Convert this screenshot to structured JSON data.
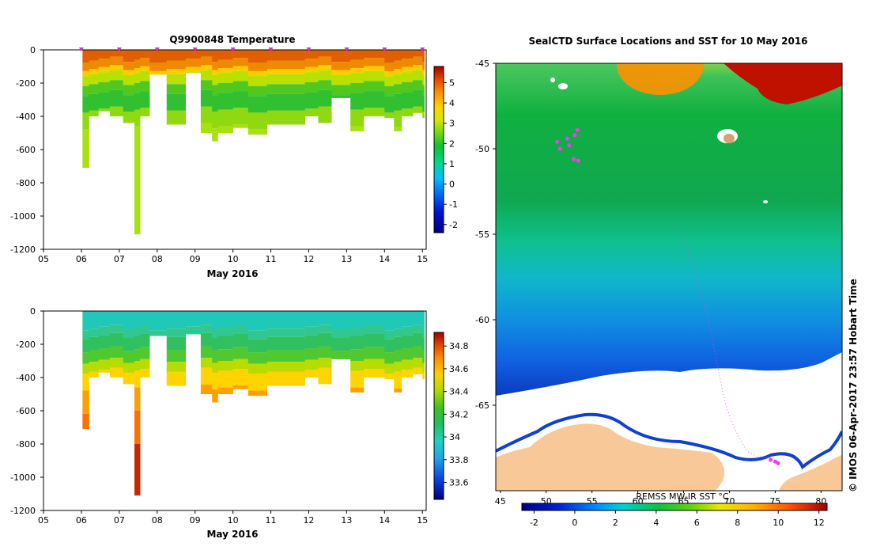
{
  "chart_data": [
    {
      "type": "heatmap",
      "title": "Q9900848  Temperature",
      "xlabel": "May 2016",
      "ylabel": "",
      "x_tick_labels": [
        "05",
        "06",
        "07",
        "08",
        "09",
        "10",
        "11",
        "12",
        "13",
        "14",
        "15"
      ],
      "x_range": [
        5.0,
        15.1
      ],
      "y_ticks": [
        0,
        -200,
        -400,
        -600,
        -800,
        -1000,
        -1200
      ],
      "ylim": [
        -1200,
        0
      ],
      "colorbar": {
        "ticks": [
          5,
          4,
          3,
          2,
          1,
          0,
          -1,
          -2
        ],
        "range": [
          -2.4,
          5.8
        ]
      },
      "profile_times": [
        6.0,
        7.0,
        8.0,
        9.0,
        10.0,
        11.0,
        12.0,
        13.0,
        14.0,
        15.0
      ],
      "profiles": [
        {
          "t0": 6.03,
          "t1": 6.2,
          "bottom": -710
        },
        {
          "t0": 6.2,
          "t1": 6.45,
          "bottom": -400
        },
        {
          "t0": 6.45,
          "t1": 6.75,
          "bottom": -370
        },
        {
          "t0": 6.75,
          "t1": 7.1,
          "bottom": -400
        },
        {
          "t0": 7.1,
          "t1": 7.4,
          "bottom": -440
        },
        {
          "t0": 7.4,
          "t1": 7.55,
          "bottom": -1110
        },
        {
          "t0": 7.55,
          "t1": 7.8,
          "bottom": -400
        },
        {
          "t0": 7.8,
          "t1": 8.25,
          "bottom": -150
        },
        {
          "t0": 8.25,
          "t1": 8.75,
          "bottom": -450
        },
        {
          "t0": 8.75,
          "t1": 9.15,
          "bottom": -140
        },
        {
          "t0": 9.15,
          "t1": 9.45,
          "bottom": -500
        },
        {
          "t0": 9.45,
          "t1": 9.6,
          "bottom": -550
        },
        {
          "t0": 9.6,
          "t1": 10.0,
          "bottom": -500
        },
        {
          "t0": 10.0,
          "t1": 10.4,
          "bottom": -470
        },
        {
          "t0": 10.4,
          "t1": 10.9,
          "bottom": -510
        },
        {
          "t0": 10.9,
          "t1": 11.9,
          "bottom": -450
        },
        {
          "t0": 11.9,
          "t1": 12.25,
          "bottom": -400
        },
        {
          "t0": 12.25,
          "t1": 12.6,
          "bottom": -440
        },
        {
          "t0": 12.6,
          "t1": 13.1,
          "bottom": -290
        },
        {
          "t0": 13.1,
          "t1": 13.45,
          "bottom": -490
        },
        {
          "t0": 13.45,
          "t1": 14.0,
          "bottom": -400
        },
        {
          "t0": 14.0,
          "t1": 14.25,
          "bottom": -410
        },
        {
          "t0": 14.25,
          "t1": 14.45,
          "bottom": -490
        },
        {
          "t0": 14.45,
          "t1": 14.75,
          "bottom": -400
        },
        {
          "t0": 14.75,
          "t1": 15.0,
          "bottom": -380
        },
        {
          "t0": 15.0,
          "t1": 15.05,
          "bottom": -410
        }
      ]
    },
    {
      "type": "heatmap",
      "title": "",
      "xlabel": "May 2016",
      "ylabel": "",
      "x_tick_labels": [
        "05",
        "06",
        "07",
        "08",
        "09",
        "10",
        "11",
        "12",
        "13",
        "14",
        "15"
      ],
      "x_range": [
        5.0,
        15.1
      ],
      "y_ticks": [
        0,
        -200,
        -400,
        -600,
        -800,
        -1000,
        -1200
      ],
      "ylim": [
        -1200,
        0
      ],
      "colorbar": {
        "ticks": [
          34.8,
          34.6,
          34.4,
          34.2,
          34,
          33.8,
          33.6
        ],
        "tick_labels": [
          "34.8",
          "34.6",
          "34.4",
          "34.2",
          "34",
          "33.8",
          "33.6"
        ],
        "range": [
          33.45,
          34.92
        ]
      }
    },
    {
      "type": "map",
      "title": "SealCTD Surface Locations and SST for 10 May 2016",
      "x_ticks": [
        45,
        50,
        55,
        60,
        65,
        70,
        75,
        80
      ],
      "x_range": [
        44.5,
        82.3
      ],
      "y_ticks": [
        -45,
        -50,
        -55,
        -60,
        -65
      ],
      "y_range": [
        -70.0,
        -45.0
      ],
      "colorbar": {
        "label": "REMSS MW-IR SST °C",
        "ticks": [
          -2,
          0,
          2,
          4,
          6,
          8,
          10,
          12
        ],
        "range": [
          -2.6,
          12.4
        ]
      },
      "track_points": [
        {
          "lon": 51.2,
          "lat": -49.6
        },
        {
          "lon": 52.3,
          "lat": -49.4
        },
        {
          "lon": 53.4,
          "lat": -48.9
        },
        {
          "lon": 53.1,
          "lat": -49.2
        },
        {
          "lon": 52.5,
          "lat": -49.8
        },
        {
          "lon": 51.5,
          "lat": -50.0
        },
        {
          "lon": 53.0,
          "lat": -50.6
        },
        {
          "lon": 53.5,
          "lat": -50.7
        },
        {
          "lon": 75.0,
          "lat": -68.3
        },
        {
          "lon": 74.5,
          "lat": -68.2
        },
        {
          "lon": 75.3,
          "lat": -68.4
        }
      ]
    }
  ],
  "credit": "© IMOS 06-Apr-2017 23:57 Hobart Time",
  "colors": {
    "land": "#f9c898",
    "ice": "#ffffff",
    "track": "#ff33ff"
  }
}
